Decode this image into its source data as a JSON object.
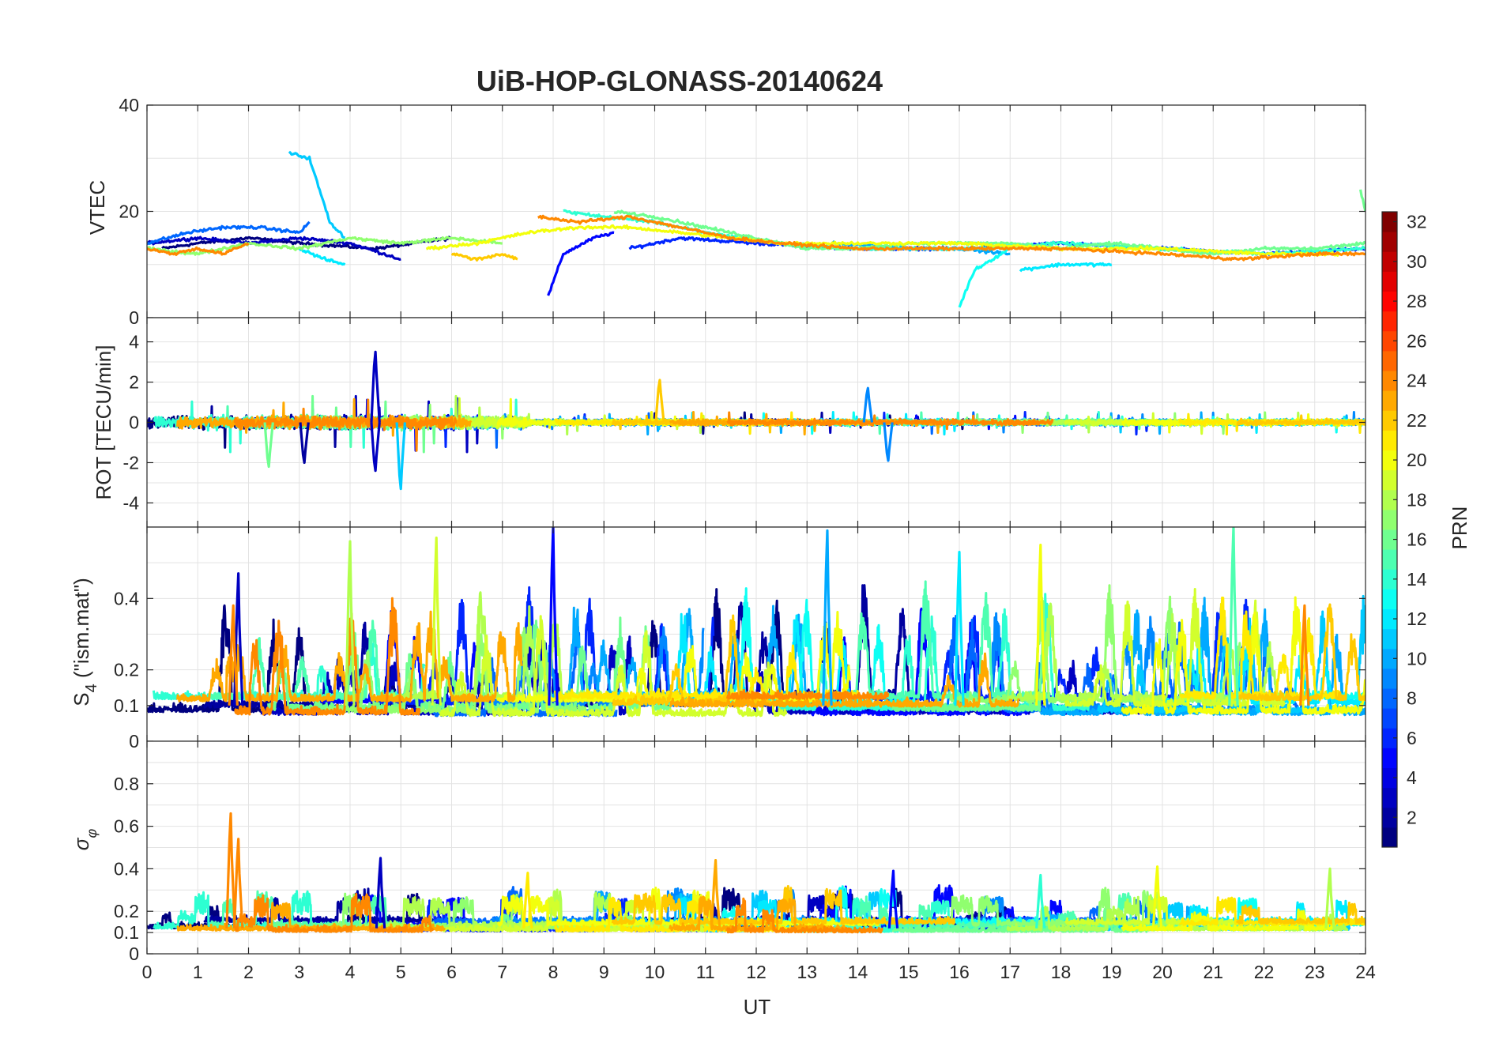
{
  "title": "UiB-HOP-GLONASS-20140624",
  "xlabel": "UT",
  "colorbar": {
    "label": "PRN",
    "range": [
      1,
      32
    ],
    "ticks": [
      "2",
      "4",
      "6",
      "8",
      "10",
      "12",
      "14",
      "16",
      "18",
      "20",
      "22",
      "24",
      "26",
      "28",
      "30",
      "32"
    ]
  },
  "chart_data": [
    {
      "type": "line",
      "panel": "vtec",
      "ylabel": "VTEC",
      "xlim": [
        0,
        24
      ],
      "ylim": [
        0,
        40
      ],
      "yticks": [
        0,
        20,
        40
      ],
      "xticks": [
        0,
        1,
        2,
        3,
        4,
        5,
        6,
        7,
        8,
        9,
        10,
        11,
        12,
        13,
        14,
        15,
        16,
        17,
        18,
        19,
        20,
        21,
        22,
        23,
        24
      ],
      "series": [
        {
          "prn": 1,
          "x": [
            0.3,
            1.0,
            2.0,
            3.0,
            4.5,
            6.0
          ],
          "y": [
            13,
            14,
            15,
            14,
            13,
            15
          ]
        },
        {
          "prn": 3,
          "x": [
            0.0,
            1.0,
            2.0,
            3.0,
            4.0,
            5.0
          ],
          "y": [
            14,
            15,
            14,
            15,
            14,
            11
          ]
        },
        {
          "prn": 5,
          "x": [
            7.9,
            8.2,
            8.8,
            9.2
          ],
          "y": [
            4,
            12,
            15,
            16
          ]
        },
        {
          "prn": 6,
          "x": [
            9.5,
            10.5,
            12.0,
            14.0,
            16.0,
            18.0,
            20.0,
            22.0,
            24.0
          ],
          "y": [
            13,
            15,
            14,
            13,
            13,
            14,
            13,
            12,
            13
          ]
        },
        {
          "prn": 8,
          "x": [
            0.0,
            0.8,
            1.5,
            2.2,
            3.0,
            3.2
          ],
          "y": [
            14,
            16,
            17,
            17,
            16,
            18
          ]
        },
        {
          "prn": 10,
          "x": [
            13.5,
            15.0,
            16.0,
            17.0
          ],
          "y": [
            14,
            13,
            13,
            12
          ]
        },
        {
          "prn": 11,
          "x": [
            2.8,
            3.2,
            3.6,
            3.9
          ],
          "y": [
            31,
            30,
            18,
            15
          ]
        },
        {
          "prn": 12,
          "x": [
            3.0,
            3.5,
            3.9
          ],
          "y": [
            13,
            11,
            10
          ]
        },
        {
          "prn": 13,
          "x": [
            16.0,
            16.3,
            17.0
          ],
          "y": [
            2,
            9,
            13
          ]
        },
        {
          "prn": 12,
          "x": [
            17.2,
            18.0,
            19.0
          ],
          "y": [
            9,
            10,
            10
          ]
        },
        {
          "prn": 14,
          "x": [
            8.2,
            9.0,
            10.0,
            11.0,
            12.5,
            14.0,
            16.0,
            18.0,
            20.0,
            22.0,
            24.0
          ],
          "y": [
            20,
            19,
            18,
            16,
            14,
            13,
            13,
            14,
            13,
            12,
            13
          ]
        },
        {
          "prn": 16,
          "x": [
            9.2,
            10.0,
            11.0,
            12.0,
            13.0,
            14.0,
            15.0,
            16.0,
            17.0,
            18.0,
            19.0,
            20.0,
            21.0,
            22.0,
            23.0,
            24.0
          ],
          "y": [
            20,
            19,
            17,
            15,
            13,
            13,
            14,
            14,
            14,
            13,
            14,
            13,
            12,
            13,
            13,
            14
          ]
        },
        {
          "prn": 17,
          "x": [
            0.0,
            1.0,
            2.0,
            3.0,
            4.0,
            5.0,
            6.0,
            7.0
          ],
          "y": [
            13,
            12,
            14,
            13,
            15,
            14,
            15,
            14
          ]
        },
        {
          "prn": 20,
          "x": [
            5.5,
            6.5,
            7.5,
            8.5,
            9.5,
            10.5,
            11.5,
            12.5,
            14.0,
            16.0,
            18.0,
            20.0,
            22.0,
            23.5
          ],
          "y": [
            13,
            14,
            16,
            17,
            17,
            16,
            15,
            14,
            14,
            14,
            13,
            13,
            12,
            12
          ]
        },
        {
          "prn": 22,
          "x": [
            6.0,
            6.5,
            7.0,
            7.3
          ],
          "y": [
            12,
            11,
            12,
            11
          ]
        },
        {
          "prn": 24,
          "x": [
            0.0,
            0.5,
            1.0,
            1.5,
            2.0
          ],
          "y": [
            13,
            12,
            13,
            12,
            14
          ]
        },
        {
          "prn": 24,
          "x": [
            7.7,
            8.5,
            9.5,
            10.5,
            11.5,
            12.5,
            14.0,
            16.0,
            18.0,
            20.0,
            21.5,
            23.0,
            24.0
          ],
          "y": [
            19,
            18,
            19,
            17,
            15,
            14,
            13,
            13,
            13,
            12,
            11,
            12,
            12
          ]
        },
        {
          "prn": 16,
          "x": [
            23.9,
            24.0
          ],
          "y": [
            24,
            20
          ]
        }
      ]
    },
    {
      "type": "line",
      "panel": "rot",
      "ylabel": "ROT [TECU/min]",
      "xlim": [
        0,
        24
      ],
      "ylim": [
        -5.2,
        5.2
      ],
      "yticks": [
        -4,
        -2,
        0,
        2,
        4
      ],
      "note": "noisy ROT traces around 0, largest spikes listed",
      "spikes": [
        {
          "prn": 3,
          "x": 4.5,
          "y": 3.5
        },
        {
          "prn": 3,
          "x": 4.5,
          "y": -2.4
        },
        {
          "prn": 11,
          "x": 5.0,
          "y": -3.3
        },
        {
          "prn": 22,
          "x": 10.1,
          "y": 2.1
        },
        {
          "prn": 9,
          "x": 14.2,
          "y": 1.7
        },
        {
          "prn": 9,
          "x": 14.6,
          "y": -1.9
        },
        {
          "prn": 16,
          "x": 2.4,
          "y": -2.2
        },
        {
          "prn": 2,
          "x": 3.1,
          "y": -2.0
        }
      ]
    },
    {
      "type": "line",
      "panel": "s4",
      "ylabel": "S4 (\"ism.mat\")",
      "xlim": [
        0,
        24
      ],
      "ylim": [
        0,
        0.6
      ],
      "yticks": [
        0,
        0.1,
        0.2,
        0.4
      ],
      "note": "S4 index traces per PRN, largest peaks listed",
      "peaks": [
        {
          "prn": 3,
          "x": 1.8,
          "y": 0.47
        },
        {
          "prn": 18,
          "x": 4.0,
          "y": 0.56
        },
        {
          "prn": 19,
          "x": 5.7,
          "y": 0.57
        },
        {
          "prn": 5,
          "x": 8.0,
          "y": 0.6
        },
        {
          "prn": 10,
          "x": 13.4,
          "y": 0.59
        },
        {
          "prn": 15,
          "x": 21.4,
          "y": 0.6
        },
        {
          "prn": 20,
          "x": 17.6,
          "y": 0.55
        },
        {
          "prn": 12,
          "x": 16.0,
          "y": 0.53
        },
        {
          "prn": 24,
          "x": 1.7,
          "y": 0.38
        },
        {
          "prn": 24,
          "x": 22.8,
          "y": 0.38
        }
      ]
    },
    {
      "type": "line",
      "panel": "sigma_phi",
      "ylabel": "σφ",
      "xlim": [
        0,
        24
      ],
      "ylim": [
        0,
        1
      ],
      "yticks": [
        0,
        0.1,
        0.2,
        0.4,
        0.6,
        0.8
      ],
      "xticks": [
        "0",
        "1",
        "2",
        "3",
        "4",
        "5",
        "6",
        "7",
        "8",
        "9",
        "10",
        "11",
        "12",
        "13",
        "14",
        "15",
        "16",
        "17",
        "18",
        "19",
        "20",
        "21",
        "22",
        "23",
        "24"
      ],
      "note": "sigma-phi traces per PRN, largest peaks listed",
      "peaks": [
        {
          "prn": 24,
          "x": 1.65,
          "y": 0.66
        },
        {
          "prn": 24,
          "x": 1.8,
          "y": 0.54
        },
        {
          "prn": 3,
          "x": 4.6,
          "y": 0.45
        },
        {
          "prn": 23,
          "x": 11.2,
          "y": 0.44
        },
        {
          "prn": 21,
          "x": 7.5,
          "y": 0.38
        },
        {
          "prn": 5,
          "x": 14.7,
          "y": 0.39
        },
        {
          "prn": 20,
          "x": 19.9,
          "y": 0.41
        },
        {
          "prn": 18,
          "x": 23.3,
          "y": 0.4
        },
        {
          "prn": 14,
          "x": 17.6,
          "y": 0.37
        }
      ]
    }
  ]
}
